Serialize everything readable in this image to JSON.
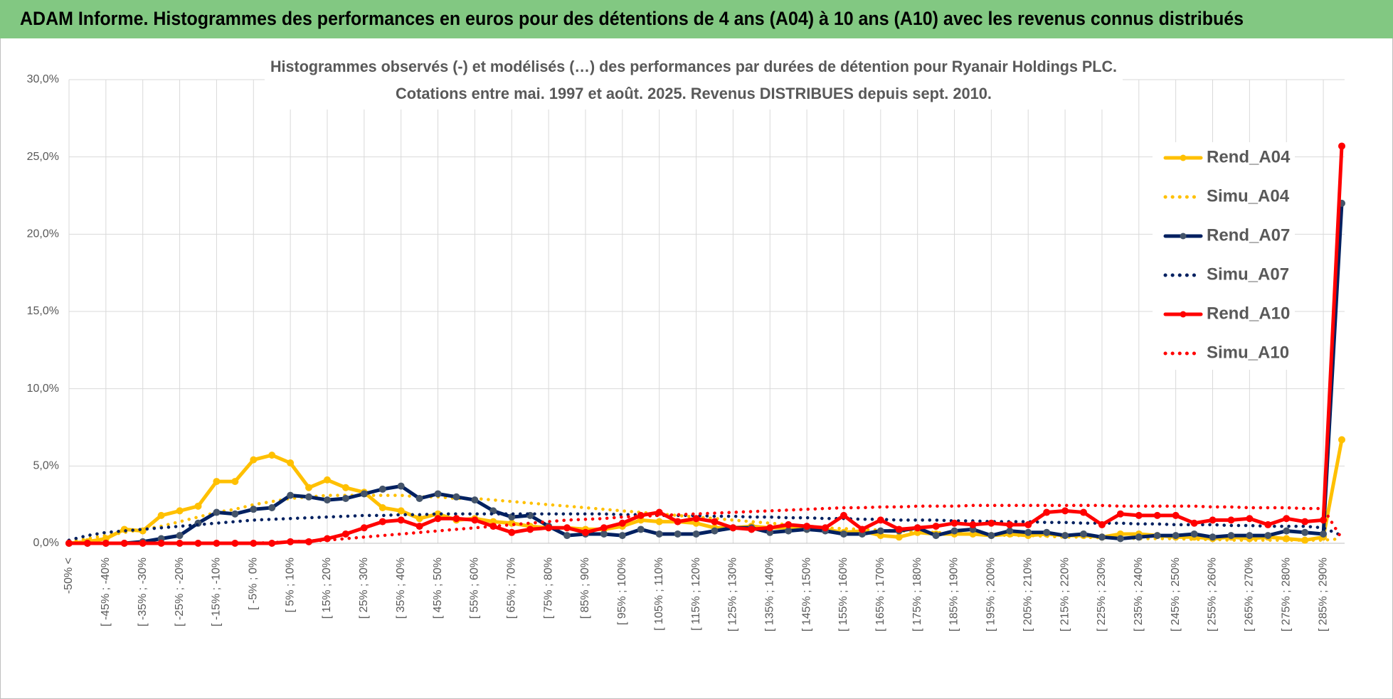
{
  "header": {
    "title": "ADAM Informe. Histogrammes des performances en euros pour des détentions de 4 ans (A04) à 10 ans (A10) avec les revenus connus distribués"
  },
  "chart_data": {
    "type": "line",
    "title": "Histogrammes observés (-) et modélisés (…) des performances par durées de détention pour Ryanair Holdings PLC.",
    "subtitle": "Cotations entre mai. 1997 et août. 2025. Revenus DISTRIBUES depuis sept. 2010.",
    "categories": [
      "-50% <",
      null,
      "[ -45% ; -40%",
      null,
      "[ -35% ; -30%",
      null,
      "[ -25% ; -20%",
      null,
      "[ -15% ; -10%",
      null,
      "[ -5% ; 0%",
      null,
      "[ 5% ; 10%",
      null,
      "[ 15% ; 20%",
      null,
      "[ 25% ; 30%",
      null,
      "[ 35% ; 40%",
      null,
      "[ 45% ; 50%",
      null,
      "[ 55% ; 60%",
      null,
      "[ 65% ; 70%",
      null,
      "[ 75% ; 80%",
      null,
      "[ 85% ; 90%",
      null,
      "[ 95% ; 100%",
      null,
      "[ 105% ; 110%",
      null,
      "[ 115% ; 120%",
      null,
      "[ 125% ; 130%",
      null,
      "[ 135% ; 140%",
      null,
      "[ 145% ; 150%",
      null,
      "[ 155% ; 160%",
      null,
      "[ 165% ; 170%",
      null,
      "[ 175% ; 180%",
      null,
      "[ 185% ; 190%",
      null,
      "[ 195% ; 200%",
      null,
      "[ 205% ; 210%",
      null,
      "[ 215% ; 220%",
      null,
      "[ 225% ; 230%",
      null,
      "[ 235% ; 240%",
      null,
      "[ 245% ; 250%",
      null,
      "[ 255% ; 260%",
      null,
      "[ 265% ; 270%",
      null,
      "[ 275% ; 280%",
      null,
      "[ 285% ; 290%",
      null
    ],
    "series": [
      {
        "name": "Rend_A04",
        "color": "#FFC000",
        "style": "solid",
        "markers": true,
        "values": [
          0,
          0.1,
          0.3,
          0.9,
          0.8,
          1.8,
          2.1,
          2.4,
          4.0,
          4.0,
          5.4,
          5.7,
          5.2,
          3.6,
          4.1,
          3.6,
          3.3,
          2.3,
          2.1,
          1.6,
          1.9,
          1.5,
          1.6,
          1.4,
          1.3,
          1.1,
          1.0,
          1.0,
          0.9,
          0.9,
          1.1,
          1.5,
          1.4,
          1.4,
          1.3,
          1.0,
          1.0,
          1.1,
          1.0,
          1.0,
          0.9,
          0.9,
          0.7,
          0.8,
          0.5,
          0.4,
          0.7,
          0.6,
          0.6,
          0.6,
          0.5,
          0.6,
          0.5,
          0.6,
          0.5,
          0.5,
          0.4,
          0.6,
          0.6,
          0.5,
          0.4,
          0.4,
          0.3,
          0.4,
          0.3,
          0.4,
          0.3,
          0.2,
          0.4,
          6.7
        ]
      },
      {
        "name": "Simu_A04",
        "color": "#FFC000",
        "style": "dotted",
        "markers": false,
        "values": [
          0.1,
          0.3,
          0.5,
          0.7,
          0.9,
          1.1,
          1.4,
          1.7,
          2.0,
          2.2,
          2.5,
          2.7,
          2.9,
          3.0,
          3.1,
          3.1,
          3.1,
          3.1,
          3.1,
          3.0,
          3.0,
          2.9,
          2.9,
          2.8,
          2.7,
          2.6,
          2.5,
          2.4,
          2.3,
          2.2,
          2.1,
          2.0,
          1.9,
          1.8,
          1.7,
          1.6,
          1.5,
          1.4,
          1.3,
          1.2,
          1.1,
          1.0,
          0.95,
          0.9,
          0.85,
          0.8,
          0.75,
          0.7,
          0.65,
          0.6,
          0.55,
          0.5,
          0.5,
          0.45,
          0.4,
          0.4,
          0.35,
          0.35,
          0.3,
          0.3,
          0.3,
          0.25,
          0.25,
          0.2,
          0.2,
          0.2,
          0.2,
          0.2,
          0.2,
          0.3
        ]
      },
      {
        "name": "Rend_A07",
        "color": "#002060",
        "marker_color": "#44546A",
        "style": "solid",
        "markers": true,
        "values": [
          0,
          0,
          0,
          0,
          0.1,
          0.3,
          0.5,
          1.3,
          2.0,
          1.9,
          2.2,
          2.3,
          3.1,
          3.0,
          2.8,
          2.9,
          3.2,
          3.5,
          3.7,
          2.9,
          3.2,
          3.0,
          2.8,
          2.1,
          1.7,
          1.8,
          1.1,
          0.5,
          0.6,
          0.6,
          0.5,
          0.9,
          0.6,
          0.6,
          0.6,
          0.8,
          1.0,
          1.0,
          0.7,
          0.8,
          0.9,
          0.8,
          0.6,
          0.6,
          0.8,
          0.8,
          1.0,
          0.5,
          0.8,
          0.9,
          0.5,
          0.8,
          0.7,
          0.7,
          0.5,
          0.6,
          0.4,
          0.3,
          0.4,
          0.5,
          0.5,
          0.6,
          0.4,
          0.5,
          0.5,
          0.5,
          0.8,
          0.7,
          0.6,
          22.0
        ]
      },
      {
        "name": "Simu_A07",
        "color": "#002060",
        "style": "dotted",
        "markers": false,
        "values": [
          0.2,
          0.5,
          0.7,
          0.8,
          0.9,
          1.0,
          1.1,
          1.2,
          1.3,
          1.4,
          1.5,
          1.55,
          1.6,
          1.65,
          1.7,
          1.75,
          1.8,
          1.8,
          1.85,
          1.85,
          1.9,
          1.9,
          1.9,
          1.9,
          1.9,
          1.9,
          1.9,
          1.9,
          1.9,
          1.9,
          1.85,
          1.85,
          1.8,
          1.8,
          1.8,
          1.75,
          1.75,
          1.7,
          1.7,
          1.65,
          1.65,
          1.6,
          1.6,
          1.55,
          1.55,
          1.5,
          1.5,
          1.5,
          1.45,
          1.45,
          1.4,
          1.4,
          1.4,
          1.35,
          1.35,
          1.3,
          1.3,
          1.3,
          1.25,
          1.25,
          1.2,
          1.2,
          1.2,
          1.15,
          1.15,
          1.1,
          1.1,
          1.1,
          1.0,
          0.5
        ]
      },
      {
        "name": "Rend_A10",
        "color": "#FF0000",
        "style": "solid",
        "markers": true,
        "values": [
          0,
          0,
          0,
          0,
          0,
          0,
          0,
          0,
          0,
          0,
          0,
          0,
          0.1,
          0.1,
          0.3,
          0.6,
          1.0,
          1.4,
          1.5,
          1.1,
          1.6,
          1.6,
          1.5,
          1.1,
          0.7,
          0.9,
          1.0,
          1.0,
          0.7,
          1.0,
          1.3,
          1.8,
          2.0,
          1.4,
          1.6,
          1.4,
          1.0,
          0.9,
          1.0,
          1.2,
          1.1,
          1.0,
          1.8,
          0.9,
          1.5,
          0.9,
          1.0,
          1.1,
          1.3,
          1.2,
          1.3,
          1.2,
          1.2,
          2.0,
          2.1,
          2.0,
          1.2,
          1.9,
          1.8,
          1.8,
          1.8,
          1.3,
          1.5,
          1.5,
          1.6,
          1.2,
          1.6,
          1.4,
          1.5,
          25.7
        ]
      },
      {
        "name": "Simu_A10",
        "color": "#FF0000",
        "style": "dotted",
        "markers": false,
        "values": [
          0,
          0,
          0,
          0,
          0,
          0,
          0,
          0,
          0,
          0,
          0,
          0.05,
          0.1,
          0.15,
          0.2,
          0.3,
          0.4,
          0.5,
          0.6,
          0.7,
          0.8,
          0.9,
          1.0,
          1.1,
          1.2,
          1.3,
          1.4,
          1.5,
          1.55,
          1.6,
          1.7,
          1.75,
          1.8,
          1.85,
          1.9,
          1.95,
          2.0,
          2.05,
          2.1,
          2.15,
          2.2,
          2.25,
          2.3,
          2.3,
          2.35,
          2.35,
          2.4,
          2.4,
          2.4,
          2.45,
          2.45,
          2.45,
          2.45,
          2.45,
          2.45,
          2.45,
          2.45,
          2.4,
          2.4,
          2.4,
          2.4,
          2.4,
          2.35,
          2.35,
          2.3,
          2.3,
          2.3,
          2.25,
          2.25,
          0.3
        ]
      }
    ],
    "ylim": [
      0,
      30
    ],
    "yticks": [
      {
        "value": 0,
        "label": "0,0%"
      },
      {
        "value": 5,
        "label": "5,0%"
      },
      {
        "value": 10,
        "label": "10,0%"
      },
      {
        "value": 15,
        "label": "15,0%"
      },
      {
        "value": 20,
        "label": "20,0%"
      },
      {
        "value": 25,
        "label": "25,0%"
      },
      {
        "value": 30,
        "label": "30,0%"
      }
    ],
    "grid": true,
    "legend": "upper right"
  }
}
